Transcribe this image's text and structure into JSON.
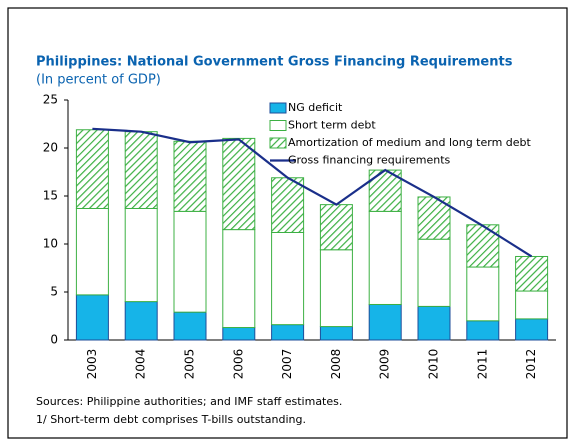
{
  "chart_data": {
    "type": "bar",
    "stacked": true,
    "title": "Philippines: National Government Gross Financing Requirements",
    "subtitle": "(In percent of GDP)",
    "categories": [
      "2003",
      "2004",
      "2005",
      "2006",
      "2007",
      "2008",
      "2009",
      "2010",
      "2011",
      "2012"
    ],
    "series": [
      {
        "name": "NG deficit",
        "color": "#16b4e8",
        "outline": "#1f4e99",
        "values": [
          4.7,
          4.0,
          2.9,
          1.3,
          1.6,
          1.4,
          3.7,
          3.5,
          2.0,
          2.2
        ]
      },
      {
        "name": "Short term debt",
        "color": "#ffffff",
        "outline": "#3cb043",
        "values": [
          9.0,
          9.7,
          10.5,
          10.2,
          9.6,
          8.0,
          9.7,
          7.0,
          5.6,
          2.9
        ]
      },
      {
        "name": "Amortization of medium and long term debt",
        "color": "#3cb043",
        "fill": "hatch",
        "outline": "#3cb043",
        "values": [
          8.2,
          8.0,
          7.3,
          9.5,
          5.7,
          4.7,
          4.3,
          4.4,
          4.4,
          3.6
        ]
      },
      {
        "name": "Gross financing requirements",
        "type": "line",
        "color": "#1a2f8a",
        "values": [
          22.0,
          21.7,
          20.6,
          20.9,
          16.9,
          14.1,
          17.7,
          14.9,
          11.9,
          8.7
        ]
      }
    ],
    "ylim": [
      0,
      25
    ],
    "yticks": [
      0,
      5,
      10,
      15,
      20,
      25
    ],
    "notes": [
      "Sources: Philippine authorities; and IMF staff estimates.",
      "1/ Short-term debt comprises T-bills outstanding."
    ]
  }
}
